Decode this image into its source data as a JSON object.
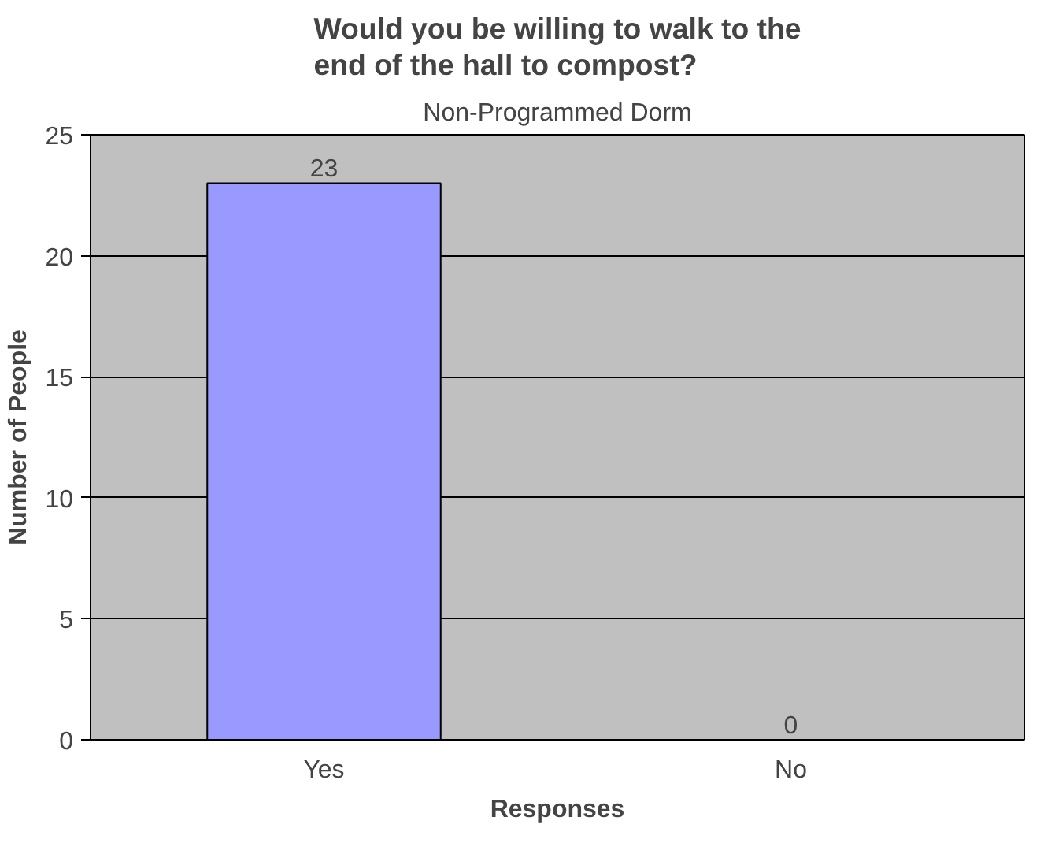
{
  "chart_data": {
    "type": "bar",
    "title": "Would you be willing to walk to the\nend of the hall to compost?",
    "subtitle": "Non-Programmed Dorm",
    "xlabel": "Responses",
    "ylabel": "Number of People",
    "categories": [
      "Yes",
      "No"
    ],
    "values": [
      23,
      0
    ],
    "color": "#9999ff",
    "ylim": [
      0,
      25
    ],
    "yticks": [
      0,
      5,
      10,
      15,
      20,
      25
    ],
    "grid": "y",
    "data_labels": true
  }
}
